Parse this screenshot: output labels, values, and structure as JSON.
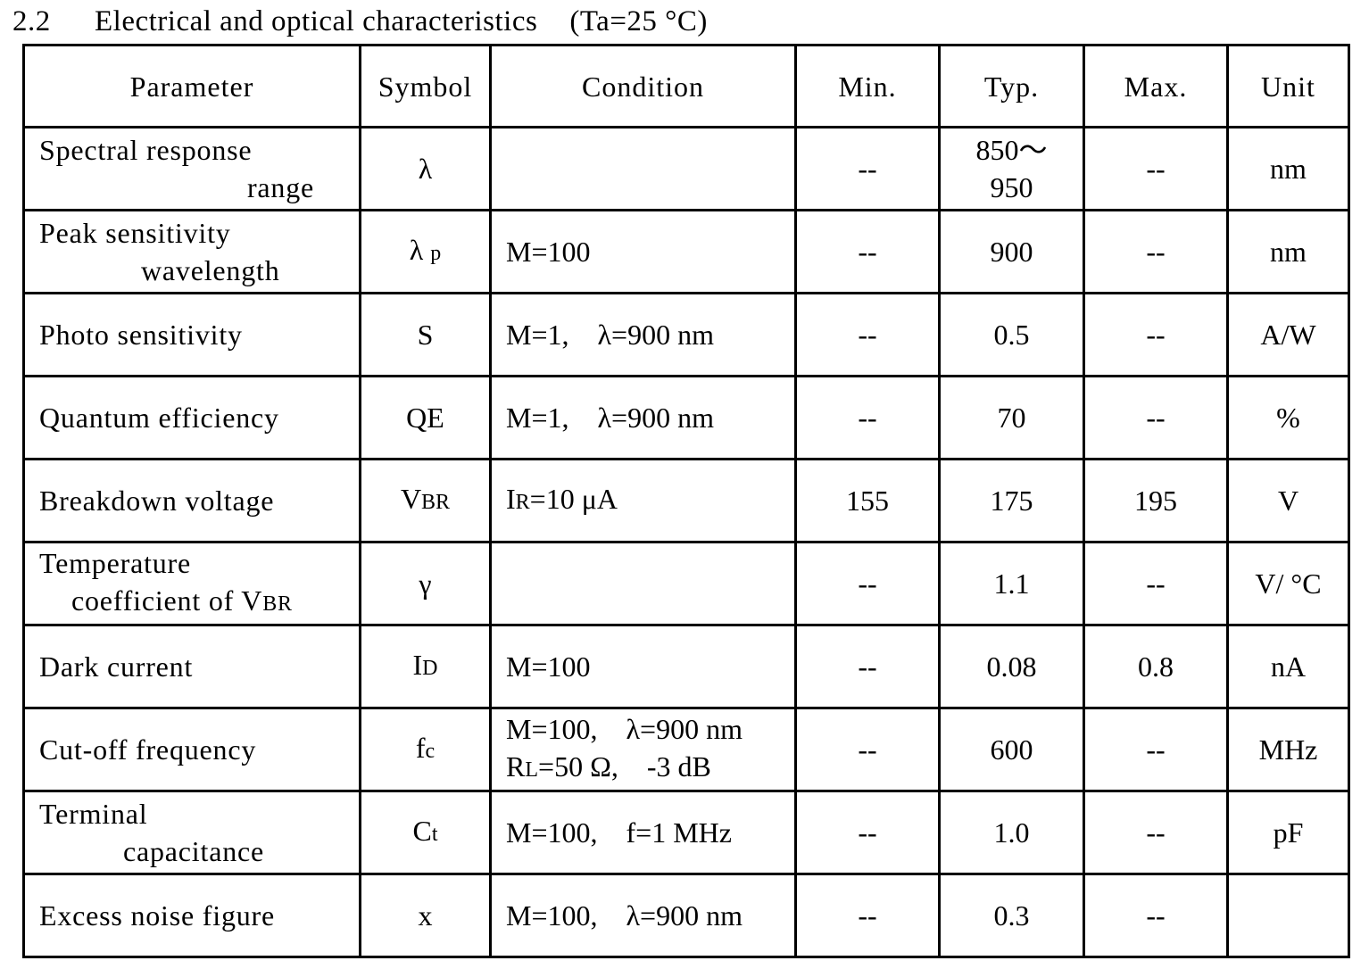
{
  "section": {
    "number": "2.2",
    "title": "Electrical and optical characteristics",
    "condition": "(Ta=25 °C)"
  },
  "table": {
    "headers": {
      "parameter": "Parameter",
      "symbol": "Symbol",
      "condition": "Condition",
      "min": "Min.",
      "typ": "Typ.",
      "max": "Max.",
      "unit": "Unit"
    },
    "rows": [
      {
        "parameter_line1": "Spectral response",
        "parameter_line2": "range",
        "symbol": "λ",
        "condition_line1": "",
        "condition_line2": "",
        "min": "--",
        "typ_line1": "850～",
        "typ_line2": "950",
        "max": "--",
        "unit": "nm"
      },
      {
        "parameter_line1": "Peak sensitivity",
        "parameter_line2": "wavelength",
        "symbol": "λ",
        "symbol_sub": "p",
        "condition_line1": "M=100",
        "min": "--",
        "typ": "900",
        "max": "--",
        "unit": "nm"
      },
      {
        "parameter_line1": "Photo sensitivity",
        "symbol": "S",
        "condition_line1": "M=1,　λ=900 nm",
        "min": "--",
        "typ": "0.5",
        "max": "--",
        "unit": "A/W"
      },
      {
        "parameter_line1": "Quantum efficiency",
        "symbol": "QE",
        "condition_line1": "M=1,　λ=900 nm",
        "min": "--",
        "typ": "70",
        "max": "--",
        "unit": "%"
      },
      {
        "parameter_line1": "Breakdown voltage",
        "symbol": "V",
        "symbol_sub": "BR",
        "condition_main": "I",
        "condition_sub": "R",
        "condition_rest": "=10 μA",
        "min": "155",
        "typ": "175",
        "max": "195",
        "unit": "V"
      },
      {
        "parameter_line1": "Temperature",
        "parameter_line2": "coefficient of V",
        "parameter_line2_sub": "BR",
        "symbol": "γ",
        "condition_line1": "",
        "min": "--",
        "typ": "1.1",
        "max": "--",
        "unit": "V/ °C"
      },
      {
        "parameter_line1": "Dark current",
        "symbol": "I",
        "symbol_sub": "D",
        "condition_line1": "M=100",
        "min": "--",
        "typ": "0.08",
        "max": "0.8",
        "unit": "nA"
      },
      {
        "parameter_line1": "Cut-off frequency",
        "symbol": "f",
        "symbol_sub": "c",
        "condition_line1": "M=100,　λ=900 nm",
        "condition_line2_main": "R",
        "condition_line2_sub": "L",
        "condition_line2_rest": "=50 Ω,　-3 dB",
        "min": "--",
        "typ": "600",
        "max": "--",
        "unit": "MHz"
      },
      {
        "parameter_line1": "Terminal",
        "parameter_line2": "capacitance",
        "symbol": "C",
        "symbol_sub": "t",
        "condition_line1": "M=100,　f=1 MHz",
        "min": "--",
        "typ": "1.0",
        "max": "--",
        "unit": "pF"
      },
      {
        "parameter_line1": "Excess noise figure",
        "symbol": "x",
        "condition_line1": "M=100,　λ=900 nm",
        "min": "--",
        "typ": "0.3",
        "max": "--",
        "unit": ""
      }
    ]
  }
}
